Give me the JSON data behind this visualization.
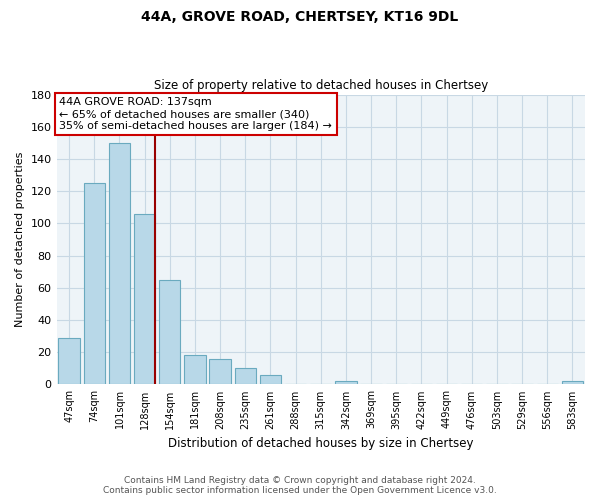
{
  "title": "44A, GROVE ROAD, CHERTSEY, KT16 9DL",
  "subtitle": "Size of property relative to detached houses in Chertsey",
  "xlabel": "Distribution of detached houses by size in Chertsey",
  "ylabel": "Number of detached properties",
  "bar_labels": [
    "47sqm",
    "74sqm",
    "101sqm",
    "128sqm",
    "154sqm",
    "181sqm",
    "208sqm",
    "235sqm",
    "261sqm",
    "288sqm",
    "315sqm",
    "342sqm",
    "369sqm",
    "395sqm",
    "422sqm",
    "449sqm",
    "476sqm",
    "503sqm",
    "529sqm",
    "556sqm",
    "583sqm"
  ],
  "bar_values": [
    29,
    125,
    150,
    106,
    65,
    18,
    16,
    10,
    6,
    0,
    0,
    2,
    0,
    0,
    0,
    0,
    0,
    0,
    0,
    0,
    2
  ],
  "bar_color": "#b8d8e8",
  "bar_edgecolor": "#6aaabf",
  "vline_color": "#990000",
  "vline_x_index": 3,
  "annotation_line1": "44A GROVE ROAD: 137sqm",
  "annotation_line2": "← 65% of detached houses are smaller (340)",
  "annotation_line3": "35% of semi-detached houses are larger (184) →",
  "annotation_box_color": "#ffffff",
  "annotation_box_edge": "#cc0000",
  "ylim": [
    0,
    180
  ],
  "yticks": [
    0,
    20,
    40,
    60,
    80,
    100,
    120,
    140,
    160,
    180
  ],
  "footer_line1": "Contains HM Land Registry data © Crown copyright and database right 2024.",
  "footer_line2": "Contains public sector information licensed under the Open Government Licence v3.0.",
  "bg_color": "#ffffff",
  "plot_bg_color": "#eef4f8",
  "grid_color": "#c8d8e4"
}
